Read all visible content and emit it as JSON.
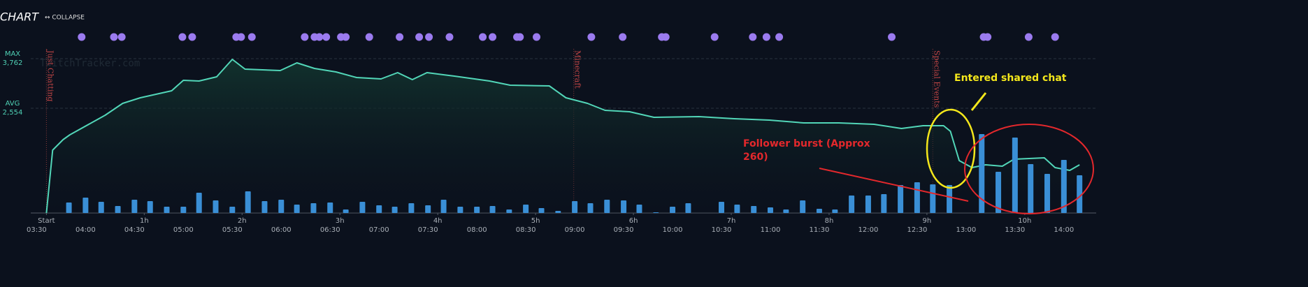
{
  "header": {
    "title": "CHART",
    "collapse": "↔ COLLAPSE"
  },
  "chart_data": {
    "type": "line",
    "watermark": "TwitchTracker.com",
    "xlim": [
      -0.16,
      10.73
    ],
    "ylim": [
      0,
      4000
    ],
    "xticks": [
      {
        "value": 0,
        "label": "Start"
      },
      {
        "value": 1,
        "label": "1h"
      },
      {
        "value": 2,
        "label": "2h"
      },
      {
        "value": 3,
        "label": "3h"
      },
      {
        "value": 4,
        "label": "4h"
      },
      {
        "value": 5,
        "label": "5h"
      },
      {
        "value": 6,
        "label": "6h"
      },
      {
        "value": 7,
        "label": "7h"
      },
      {
        "value": 8,
        "label": "8h"
      },
      {
        "value": 9,
        "label": "9h"
      },
      {
        "value": 10,
        "label": "10h"
      }
    ],
    "clock_ticks": [
      {
        "value": -0.1,
        "label": "03:30"
      },
      {
        "value": 0.4,
        "label": "04:00"
      },
      {
        "value": 0.9,
        "label": "04:30"
      },
      {
        "value": 1.4,
        "label": "05:00"
      },
      {
        "value": 1.9,
        "label": "05:30"
      },
      {
        "value": 2.4,
        "label": "06:00"
      },
      {
        "value": 2.9,
        "label": "06:30"
      },
      {
        "value": 3.4,
        "label": "07:00"
      },
      {
        "value": 3.9,
        "label": "07:30"
      },
      {
        "value": 4.4,
        "label": "08:00"
      },
      {
        "value": 4.9,
        "label": "08:30"
      },
      {
        "value": 5.4,
        "label": "09:00"
      },
      {
        "value": 5.9,
        "label": "09:30"
      },
      {
        "value": 6.4,
        "label": "10:00"
      },
      {
        "value": 6.9,
        "label": "10:30"
      },
      {
        "value": 7.4,
        "label": "11:00"
      },
      {
        "value": 7.9,
        "label": "11:30"
      },
      {
        "value": 8.4,
        "label": "12:00"
      },
      {
        "value": 8.9,
        "label": "12:30"
      },
      {
        "value": 9.4,
        "label": "13:00"
      },
      {
        "value": 9.9,
        "label": "13:30"
      },
      {
        "value": 10.4,
        "label": "14:00"
      }
    ],
    "yticks": [
      {
        "value": 3762,
        "label": "3,762",
        "name": "MAX"
      },
      {
        "value": 2554,
        "label": "2,554",
        "name": "AVG"
      }
    ],
    "series": [
      {
        "type": "line",
        "color": "#52d6b8",
        "x": [
          0,
          0.064,
          0.17,
          0.24,
          0.6,
          0.78,
          0.96,
          1.28,
          1.4,
          1.56,
          1.74,
          1.9,
          2.03,
          2.39,
          2.56,
          2.74,
          2.96,
          3.17,
          3.42,
          3.59,
          3.74,
          3.89,
          4.17,
          4.53,
          4.74,
          5.14,
          5.31,
          5.53,
          5.71,
          5.96,
          6.21,
          6.67,
          7.03,
          7.39,
          7.74,
          8.1,
          8.46,
          8.74,
          8.96,
          9.17,
          9.24,
          9.33,
          9.46,
          9.6,
          9.77,
          9.89,
          10.2,
          10.31,
          10.46,
          10.56
        ],
        "values": [
          0,
          1532,
          1787,
          1906,
          2383,
          2672,
          2808,
          2979,
          3234,
          3217,
          3319,
          3745,
          3506,
          3472,
          3659,
          3523,
          3438,
          3302,
          3268,
          3421,
          3251,
          3421,
          3336,
          3217,
          3115,
          3098,
          2808,
          2672,
          2502,
          2468,
          2332,
          2349,
          2298,
          2264,
          2196,
          2196,
          2162,
          2059,
          2128,
          2128,
          1991,
          1276,
          1106,
          1174,
          1140,
          1311,
          1345,
          1106,
          1038,
          1174
        ]
      },
      {
        "type": "bar",
        "color": "#3a8fd6",
        "x": [
          0.23,
          0.4,
          0.56,
          0.73,
          0.9,
          1.06,
          1.23,
          1.4,
          1.56,
          1.73,
          1.9,
          2.06,
          2.23,
          2.4,
          2.56,
          2.73,
          2.9,
          3.06,
          3.23,
          3.4,
          3.56,
          3.73,
          3.9,
          4.06,
          4.23,
          4.4,
          4.56,
          4.73,
          4.9,
          5.06,
          5.23,
          5.4,
          5.56,
          5.73,
          5.9,
          6.06,
          6.23,
          6.4,
          6.56,
          6.73,
          6.9,
          7.06,
          7.23,
          7.4,
          7.56,
          7.73,
          7.9,
          8.06,
          8.23,
          8.4,
          8.56,
          8.73,
          8.9,
          9.06,
          9.23,
          9.4,
          9.56,
          9.73,
          9.9,
          10.06,
          10.23,
          10.4,
          10.56
        ],
        "values": [
          255,
          374,
          272,
          170,
          323,
          289,
          153,
          153,
          494,
          306,
          153,
          528,
          289,
          323,
          204,
          238,
          255,
          85,
          272,
          187,
          153,
          238,
          187,
          323,
          153,
          153,
          170,
          85,
          204,
          119,
          51,
          289,
          238,
          323,
          306,
          204,
          17,
          153,
          238,
          0,
          272,
          204,
          170,
          136,
          85,
          306,
          102,
          85,
          426,
          426,
          460,
          681,
          749,
          698,
          681,
          0,
          1923,
          1004,
          1838,
          1191,
          953,
          1293,
          919
        ]
      }
    ],
    "category_changes": [
      {
        "x": 0,
        "label": "Just Chatting"
      },
      {
        "x": 5.39,
        "label": "Minecraft"
      },
      {
        "x": 9.06,
        "label": "Special Events"
      }
    ],
    "event_markers": {
      "color": "#9b7bef",
      "x": [
        0.36,
        0.69,
        0.77,
        1.39,
        1.49,
        1.94,
        1.99,
        2.1,
        2.64,
        2.74,
        2.79,
        2.86,
        3.01,
        3.06,
        3.3,
        3.61,
        3.81,
        3.91,
        4.12,
        4.46,
        4.56,
        4.81,
        4.84,
        5.01,
        5.57,
        5.89,
        6.29,
        6.33,
        6.83,
        7.22,
        7.36,
        7.49,
        8.64,
        9.58,
        9.62,
        10.04,
        10.31
      ]
    },
    "annotations": [
      {
        "text": "Entered shared chat",
        "color": "#f4e71b"
      },
      {
        "text": "Follower burst (Approx 260)",
        "color": "#e3282c"
      }
    ]
  }
}
